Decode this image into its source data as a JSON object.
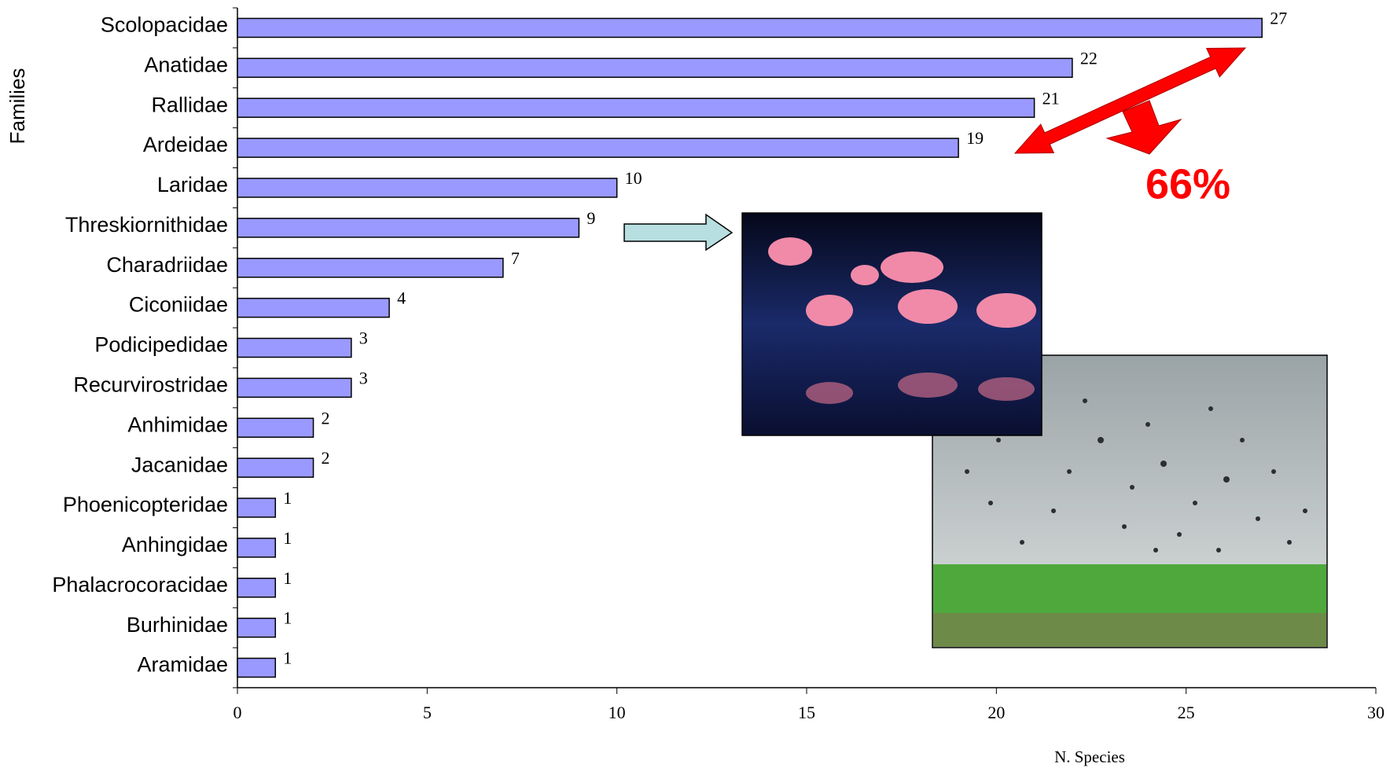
{
  "chart_data": {
    "type": "hbar",
    "categories": [
      "Scolopacidae",
      "Anatidae",
      "Rallidae",
      "Ardeidae",
      "Laridae",
      "Threskiornithidae",
      "Charadriidae",
      "Ciconiidae",
      "Podicipedidae",
      "Recurvirostridae",
      "Anhimidae",
      "Jacanidae",
      "Phoenicopteridae",
      "Anhingidae",
      "Phalacrocoracidae",
      "Burhinidae",
      "Aramidae"
    ],
    "values": [
      27,
      22,
      21,
      19,
      10,
      9,
      7,
      4,
      3,
      3,
      2,
      2,
      1,
      1,
      1,
      1,
      1
    ],
    "color": "#9999ff",
    "xlim": [
      0,
      30
    ],
    "xticks": [
      0,
      5,
      10,
      15,
      20,
      25,
      30
    ],
    "x_label": "N. Species",
    "y_label": "Families",
    "annotation": "66%"
  }
}
